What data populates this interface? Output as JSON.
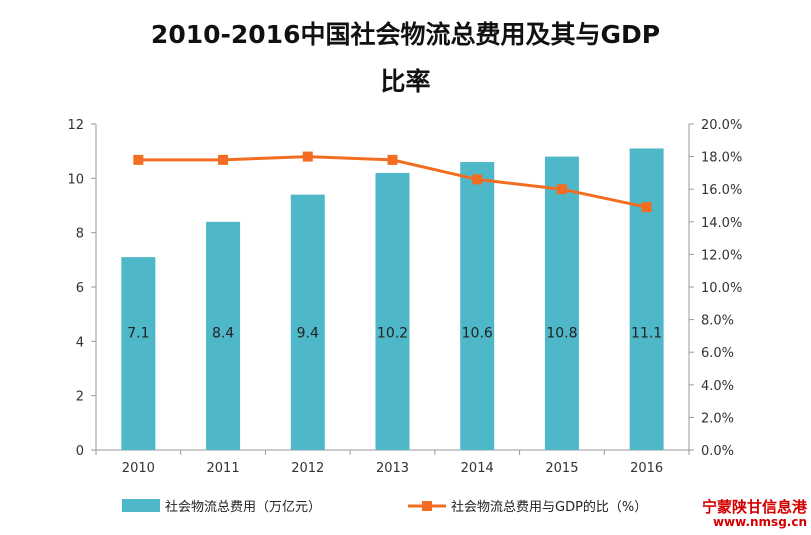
{
  "chart_data": {
    "type": "bar",
    "title": "2010-2016中国社会物流总费用及其与GDP",
    "title_line2": "比率",
    "categories": [
      "2010",
      "2011",
      "2012",
      "2013",
      "2014",
      "2015",
      "2016"
    ],
    "series": [
      {
        "name": "社会物流总费用（万亿元）",
        "type": "bar",
        "axis": "left",
        "values": [
          7.1,
          8.4,
          9.4,
          10.2,
          10.6,
          10.8,
          11.1
        ],
        "data_labels": [
          "7.1",
          "8.4",
          "9.4",
          "10.2",
          "10.6",
          "10.8",
          "11.1"
        ]
      },
      {
        "name": "社会物流总费用与GDP的比（%）",
        "type": "line",
        "axis": "right",
        "values": [
          17.8,
          17.8,
          18.0,
          17.8,
          16.6,
          16.0,
          14.9
        ]
      }
    ],
    "y_left": {
      "ylim": [
        0,
        12
      ],
      "ticks": [
        "0",
        "2",
        "4",
        "6",
        "8",
        "10",
        "12"
      ]
    },
    "y_right": {
      "ylim": [
        0,
        20
      ],
      "ticks": [
        "0.0%",
        "2.0%",
        "4.0%",
        "6.0%",
        "8.0%",
        "10.0%",
        "12.0%",
        "14.0%",
        "16.0%",
        "18.0%",
        "20.0%"
      ]
    },
    "legend": {
      "placement": "bottom"
    },
    "grid": false,
    "colors": {
      "bar": "#4fb8c8",
      "line": "#f26d21"
    }
  },
  "watermark": {
    "line1": "宁蒙陕甘信息港",
    "line2": "www.nmsg.cn"
  }
}
